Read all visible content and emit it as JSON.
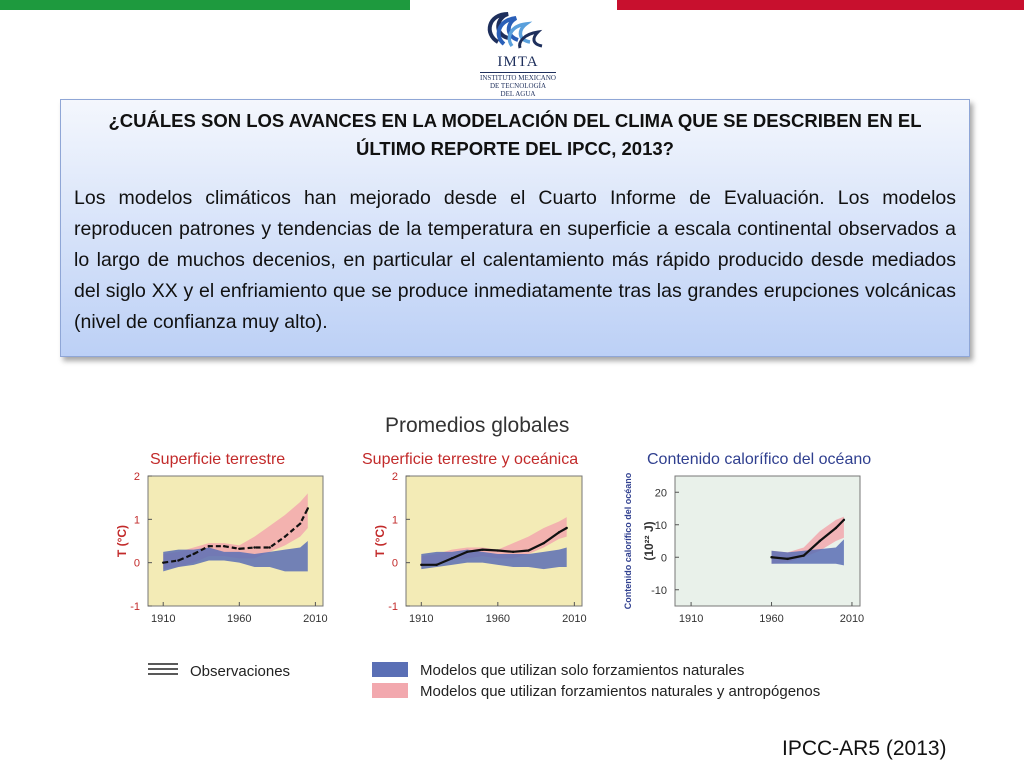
{
  "logo": {
    "name": "IMTA",
    "subtitle_lines": [
      "INSTITUTO MEXICANO",
      "DE TECNOLOGÍA",
      "DEL AGUA"
    ]
  },
  "colors": {
    "flag_green": "#1e9a3e",
    "flag_red": "#c8102e",
    "natural": "#5a6fb5",
    "anthropogenic": "#f2a8ae",
    "panel_title": "#c22a2a",
    "panel_title_ocean": "#2f3f8f",
    "land_bg": "#f3ebb6",
    "ocean_bg": "#e9f1ea"
  },
  "question": "¿CUÁLES SON LOS AVANCES EN LA MODELACIÓN DEL CLIMA QUE SE DESCRIBEN EN EL ÚLTIMO REPORTE DEL IPCC, 2013?",
  "body": "Los modelos climáticos han mejorado desde el Cuarto Informe de Evaluación. Los modelos reproducen patrones y tendencias de la temperatura en superficie a escala continental observados a lo largo de muchos decenios, en particular el calentamiento más rápido producido desde mediados del siglo XX y el enfriamiento que se produce inmediatamente tras las grandes erupciones volcánicas (nivel de confianza muy alto).",
  "figure_title": "Promedios globales",
  "legend": {
    "observations": "Observaciones",
    "natural": "Modelos que utilizan solo forzamientos naturales",
    "anthropogenic": "Modelos que utilizan forzamientos naturales y antropógenos"
  },
  "citation": "IPCC-AR5 (2013)",
  "chart_data": [
    {
      "type": "line",
      "title": "Superficie terrestre",
      "ylabel": "T (°C)",
      "xlim": [
        1900,
        2015
      ],
      "ylim": [
        -1,
        2
      ],
      "xticks": [
        "1910",
        "1960",
        "2010"
      ],
      "yticks": [
        "-1",
        "0",
        "1",
        "2"
      ],
      "x": [
        1910,
        1920,
        1930,
        1940,
        1950,
        1960,
        1970,
        1980,
        1990,
        2000,
        2005
      ],
      "series": [
        {
          "name": "Observaciones",
          "values": [
            0.0,
            0.05,
            0.2,
            0.38,
            0.38,
            0.32,
            0.35,
            0.35,
            0.6,
            0.9,
            1.25
          ]
        },
        {
          "name": "Modelos que utilizan solo forzamientos naturales",
          "low": [
            -0.2,
            -0.1,
            -0.05,
            0.05,
            0.05,
            0.0,
            -0.1,
            -0.1,
            -0.2,
            -0.2,
            -0.2
          ],
          "high": [
            0.25,
            0.3,
            0.3,
            0.35,
            0.25,
            0.25,
            0.2,
            0.25,
            0.3,
            0.35,
            0.5
          ]
        },
        {
          "name": "Modelos que utilizan forzamientos naturales y antropógenos",
          "low": [
            -0.15,
            -0.1,
            0.0,
            0.15,
            0.15,
            0.1,
            0.1,
            0.25,
            0.4,
            0.6,
            0.8
          ],
          "high": [
            0.2,
            0.25,
            0.35,
            0.45,
            0.45,
            0.4,
            0.6,
            0.85,
            1.1,
            1.4,
            1.6
          ]
        }
      ]
    },
    {
      "type": "line",
      "title": "Superficie terrestre y oceánica",
      "ylabel": "T (°C)",
      "xlim": [
        1900,
        2015
      ],
      "ylim": [
        -1,
        2
      ],
      "xticks": [
        "1910",
        "1960",
        "2010"
      ],
      "yticks": [
        "-1",
        "0",
        "1",
        "2"
      ],
      "x": [
        1910,
        1920,
        1930,
        1940,
        1950,
        1960,
        1970,
        1980,
        1990,
        2000,
        2005
      ],
      "series": [
        {
          "name": "Observaciones",
          "values": [
            -0.05,
            -0.05,
            0.1,
            0.25,
            0.3,
            0.28,
            0.25,
            0.28,
            0.45,
            0.7,
            0.8
          ]
        },
        {
          "name": "Modelos que utilizan solo forzamientos naturales",
          "low": [
            -0.15,
            -0.1,
            -0.05,
            0.0,
            0.0,
            -0.05,
            -0.1,
            -0.1,
            -0.15,
            -0.1,
            -0.1
          ],
          "high": [
            0.2,
            0.25,
            0.25,
            0.3,
            0.25,
            0.2,
            0.2,
            0.2,
            0.25,
            0.3,
            0.35
          ]
        },
        {
          "name": "Modelos que utilizan forzamientos naturales y antropógenos",
          "low": [
            -0.1,
            -0.05,
            0.05,
            0.1,
            0.15,
            0.1,
            0.1,
            0.2,
            0.35,
            0.55,
            0.6
          ],
          "high": [
            0.15,
            0.2,
            0.3,
            0.35,
            0.35,
            0.3,
            0.45,
            0.6,
            0.8,
            0.95,
            1.05
          ]
        }
      ]
    },
    {
      "type": "line",
      "title": "Contenido calorífico del océano",
      "ylabel": "(10²² J)",
      "ylabel2": "Contenido calorífico del océano",
      "xlim": [
        1900,
        2015
      ],
      "ylim": [
        -15,
        25
      ],
      "xticks": [
        "1910",
        "1960",
        "2010"
      ],
      "yticks": [
        "-10",
        "0",
        "10",
        "20"
      ],
      "x": [
        1960,
        1970,
        1980,
        1990,
        2000,
        2005
      ],
      "series": [
        {
          "name": "Observaciones",
          "values": [
            0.0,
            -0.5,
            0.5,
            5.0,
            9.0,
            11.5
          ]
        },
        {
          "name": "Modelos que utilizan solo forzamientos naturales",
          "low": [
            -2.0,
            -2.0,
            -2.0,
            -2.0,
            -2.0,
            -2.5
          ],
          "high": [
            2.0,
            1.5,
            2.0,
            2.5,
            3.0,
            5.5
          ]
        },
        {
          "name": "Modelos que utilizan forzamientos naturales y antropógenos",
          "low": [
            -2.0,
            -1.5,
            0.0,
            2.0,
            5.0,
            6.0
          ],
          "high": [
            2.0,
            1.5,
            3.0,
            8.0,
            11.5,
            12.5
          ]
        }
      ]
    }
  ]
}
